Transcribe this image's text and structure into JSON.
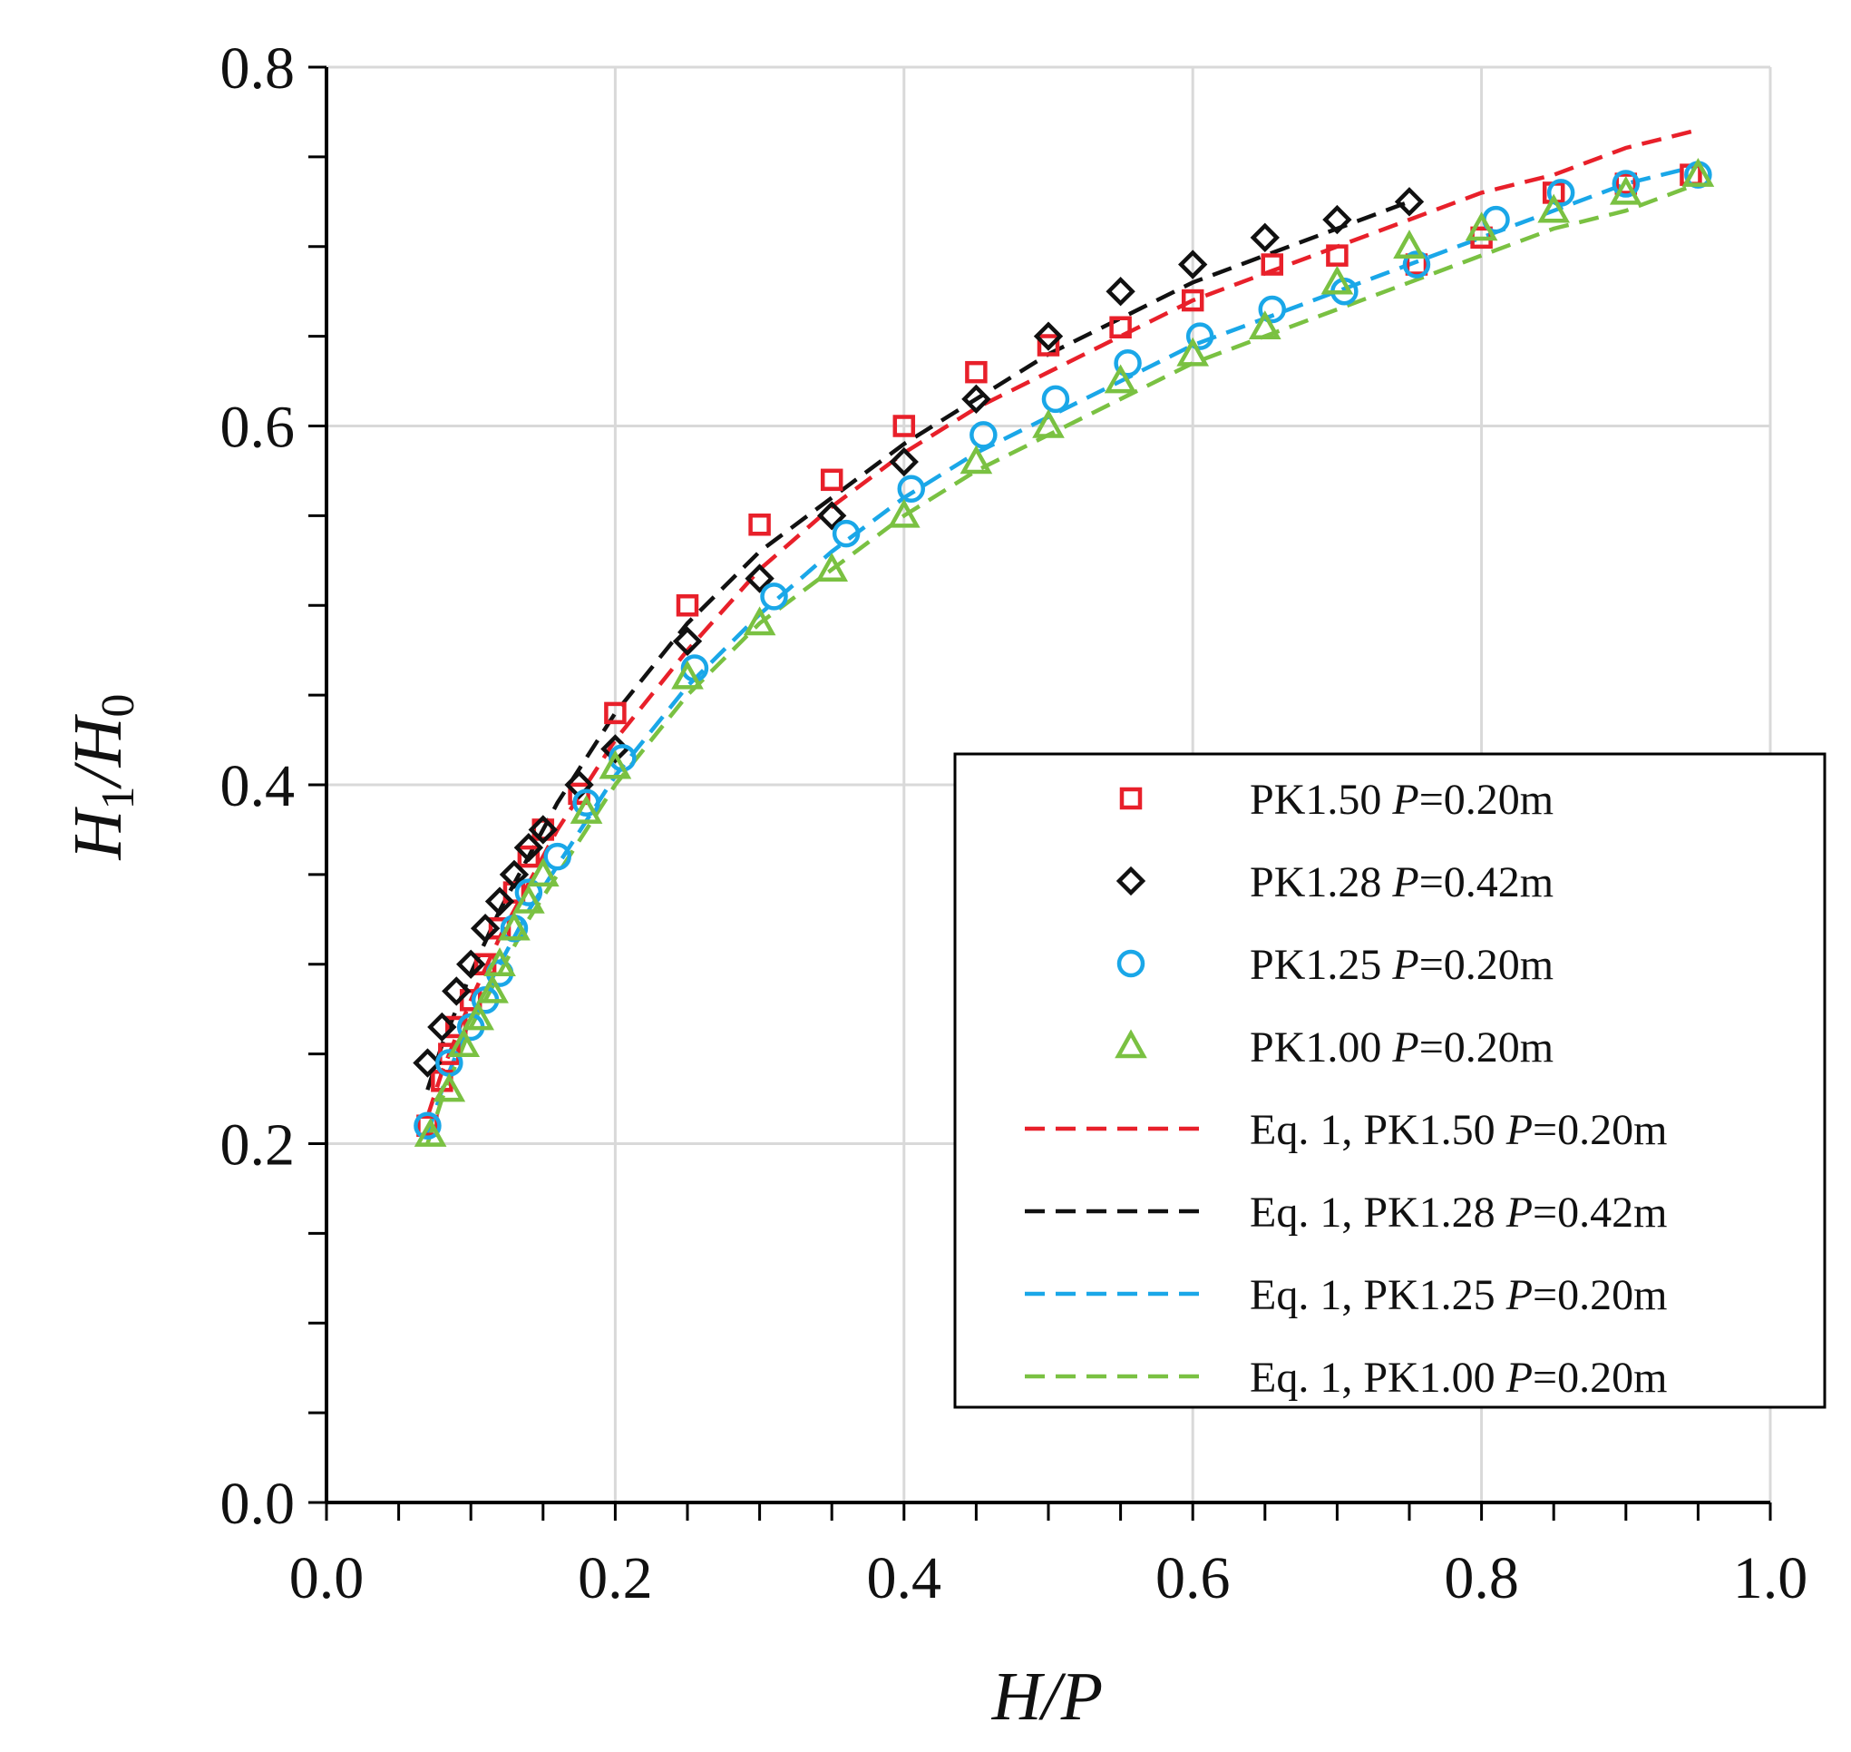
{
  "chart_data": {
    "type": "scatter",
    "xlabel": "H/P",
    "ylabel": {
      "main": "H",
      "sub1": "1",
      "sep": "/H",
      "sub2": "0"
    },
    "xlim": [
      0.0,
      1.0
    ],
    "ylim": [
      0.0,
      0.8
    ],
    "x_ticks": [
      0.0,
      0.2,
      0.4,
      0.6,
      0.8,
      1.0
    ],
    "x_tick_labels": [
      "0.0",
      "0.2",
      "0.4",
      "0.6",
      "0.8",
      "1.0"
    ],
    "x_minor_step": 0.05,
    "y_ticks": [
      0.0,
      0.2,
      0.4,
      0.6,
      0.8
    ],
    "y_tick_labels": [
      "0.0",
      "0.2",
      "0.4",
      "0.6",
      "0.8"
    ],
    "y_minor_step": 0.05,
    "grid": true,
    "legend_position": "right-middle",
    "series": [
      {
        "name": "PK1.50 P=0.20m",
        "label_prefix": "PK1.50 ",
        "label_var": "P",
        "label_suffix": "=0.20m",
        "marker": "square",
        "color": "#e8202a",
        "x": [
          0.07,
          0.08,
          0.085,
          0.09,
          0.1,
          0.11,
          0.12,
          0.13,
          0.14,
          0.15,
          0.175,
          0.2,
          0.25,
          0.3,
          0.35,
          0.4,
          0.45,
          0.5,
          0.55,
          0.6,
          0.655,
          0.7,
          0.755,
          0.8,
          0.85,
          0.9,
          0.945
        ],
        "y": [
          0.21,
          0.235,
          0.25,
          0.265,
          0.28,
          0.3,
          0.32,
          0.34,
          0.36,
          0.375,
          0.395,
          0.44,
          0.5,
          0.545,
          0.57,
          0.6,
          0.63,
          0.645,
          0.655,
          0.67,
          0.69,
          0.695,
          0.69,
          0.705,
          0.73,
          0.735,
          0.74
        ]
      },
      {
        "name": "PK1.28 P=0.42m",
        "label_prefix": "PK1.28 ",
        "label_var": "P",
        "label_suffix": "=0.42m",
        "marker": "diamond",
        "color": "#111111",
        "x": [
          0.07,
          0.08,
          0.09,
          0.1,
          0.11,
          0.12,
          0.13,
          0.14,
          0.15,
          0.175,
          0.2,
          0.25,
          0.3,
          0.35,
          0.4,
          0.45,
          0.5,
          0.55,
          0.6,
          0.65,
          0.7,
          0.75
        ],
        "y": [
          0.245,
          0.265,
          0.285,
          0.3,
          0.32,
          0.335,
          0.35,
          0.365,
          0.375,
          0.4,
          0.42,
          0.48,
          0.515,
          0.55,
          0.58,
          0.615,
          0.65,
          0.675,
          0.69,
          0.705,
          0.715,
          0.725
        ]
      },
      {
        "name": "PK1.25 P=0.20m",
        "label_prefix": "PK1.25 ",
        "label_var": "P",
        "label_suffix": "=0.20m",
        "marker": "circle",
        "color": "#1aa7e8",
        "x": [
          0.07,
          0.085,
          0.1,
          0.11,
          0.12,
          0.13,
          0.14,
          0.16,
          0.18,
          0.205,
          0.255,
          0.31,
          0.36,
          0.405,
          0.455,
          0.505,
          0.555,
          0.605,
          0.655,
          0.705,
          0.755,
          0.81,
          0.855,
          0.9,
          0.95
        ],
        "y": [
          0.21,
          0.245,
          0.265,
          0.28,
          0.295,
          0.32,
          0.34,
          0.36,
          0.39,
          0.415,
          0.465,
          0.505,
          0.54,
          0.565,
          0.595,
          0.615,
          0.635,
          0.65,
          0.665,
          0.675,
          0.69,
          0.715,
          0.73,
          0.735,
          0.74
        ]
      },
      {
        "name": "PK1.00 P=0.20m",
        "label_prefix": "PK1.00 ",
        "label_var": "P",
        "label_suffix": "=0.20m",
        "marker": "triangle",
        "color": "#7ac142",
        "x": [
          0.072,
          0.085,
          0.095,
          0.105,
          0.115,
          0.12,
          0.13,
          0.14,
          0.15,
          0.18,
          0.2,
          0.25,
          0.3,
          0.35,
          0.4,
          0.45,
          0.5,
          0.55,
          0.6,
          0.65,
          0.7,
          0.75,
          0.8,
          0.85,
          0.9,
          0.95
        ],
        "y": [
          0.205,
          0.23,
          0.255,
          0.27,
          0.285,
          0.3,
          0.32,
          0.335,
          0.35,
          0.385,
          0.41,
          0.46,
          0.49,
          0.52,
          0.55,
          0.58,
          0.6,
          0.625,
          0.64,
          0.655,
          0.68,
          0.7,
          0.71,
          0.72,
          0.73,
          0.74
        ]
      },
      {
        "name": "Eq. 1, PK1.50 P=0.20m",
        "label_prefix": "Eq. 1, PK1.50 ",
        "label_var": "P",
        "label_suffix": "=0.20m",
        "type": "line",
        "dash": true,
        "color": "#e8202a",
        "x": [
          0.07,
          0.08,
          0.09,
          0.1,
          0.12,
          0.14,
          0.16,
          0.18,
          0.2,
          0.25,
          0.3,
          0.35,
          0.4,
          0.45,
          0.5,
          0.55,
          0.6,
          0.65,
          0.7,
          0.75,
          0.8,
          0.85,
          0.9,
          0.95
        ],
        "y": [
          0.215,
          0.24,
          0.26,
          0.28,
          0.315,
          0.345,
          0.375,
          0.4,
          0.425,
          0.475,
          0.52,
          0.555,
          0.585,
          0.61,
          0.63,
          0.65,
          0.67,
          0.685,
          0.7,
          0.715,
          0.73,
          0.74,
          0.755,
          0.765
        ]
      },
      {
        "name": "Eq. 1, PK1.28 P=0.42m",
        "label_prefix": "Eq. 1, PK1.28 ",
        "label_var": "P",
        "label_suffix": "=0.42m",
        "type": "line",
        "dash": true,
        "color": "#111111",
        "x": [
          0.07,
          0.08,
          0.09,
          0.1,
          0.12,
          0.14,
          0.16,
          0.18,
          0.2,
          0.25,
          0.3,
          0.35,
          0.4,
          0.45,
          0.5,
          0.55,
          0.6,
          0.65,
          0.7,
          0.75
        ],
        "y": [
          0.23,
          0.255,
          0.275,
          0.295,
          0.33,
          0.36,
          0.39,
          0.415,
          0.44,
          0.49,
          0.53,
          0.56,
          0.59,
          0.615,
          0.64,
          0.66,
          0.68,
          0.695,
          0.71,
          0.725
        ]
      },
      {
        "name": "Eq. 1, PK1.25 P=0.20m",
        "label_prefix": "Eq. 1, PK1.25 ",
        "label_var": "P",
        "label_suffix": "=0.20m",
        "type": "line",
        "dash": true,
        "color": "#1aa7e8",
        "x": [
          0.07,
          0.08,
          0.09,
          0.1,
          0.12,
          0.14,
          0.16,
          0.18,
          0.2,
          0.25,
          0.3,
          0.35,
          0.4,
          0.45,
          0.5,
          0.55,
          0.6,
          0.65,
          0.7,
          0.75,
          0.8,
          0.85,
          0.9,
          0.95
        ],
        "y": [
          0.205,
          0.23,
          0.25,
          0.27,
          0.3,
          0.33,
          0.355,
          0.38,
          0.405,
          0.455,
          0.495,
          0.53,
          0.56,
          0.585,
          0.605,
          0.625,
          0.645,
          0.66,
          0.675,
          0.69,
          0.705,
          0.72,
          0.735,
          0.745
        ]
      },
      {
        "name": "Eq. 1, PK1.00 P=0.20m",
        "label_prefix": "Eq. 1, PK1.00 ",
        "label_var": "P",
        "label_suffix": "=0.20m",
        "type": "line",
        "dash": true,
        "color": "#7ac142",
        "x": [
          0.07,
          0.08,
          0.09,
          0.1,
          0.12,
          0.14,
          0.16,
          0.18,
          0.2,
          0.25,
          0.3,
          0.35,
          0.4,
          0.45,
          0.5,
          0.55,
          0.6,
          0.65,
          0.7,
          0.75,
          0.8,
          0.85,
          0.9,
          0.95
        ],
        "y": [
          0.2,
          0.225,
          0.245,
          0.265,
          0.295,
          0.325,
          0.35,
          0.375,
          0.4,
          0.45,
          0.49,
          0.52,
          0.55,
          0.575,
          0.595,
          0.615,
          0.635,
          0.65,
          0.665,
          0.68,
          0.695,
          0.71,
          0.72,
          0.735
        ]
      }
    ]
  }
}
